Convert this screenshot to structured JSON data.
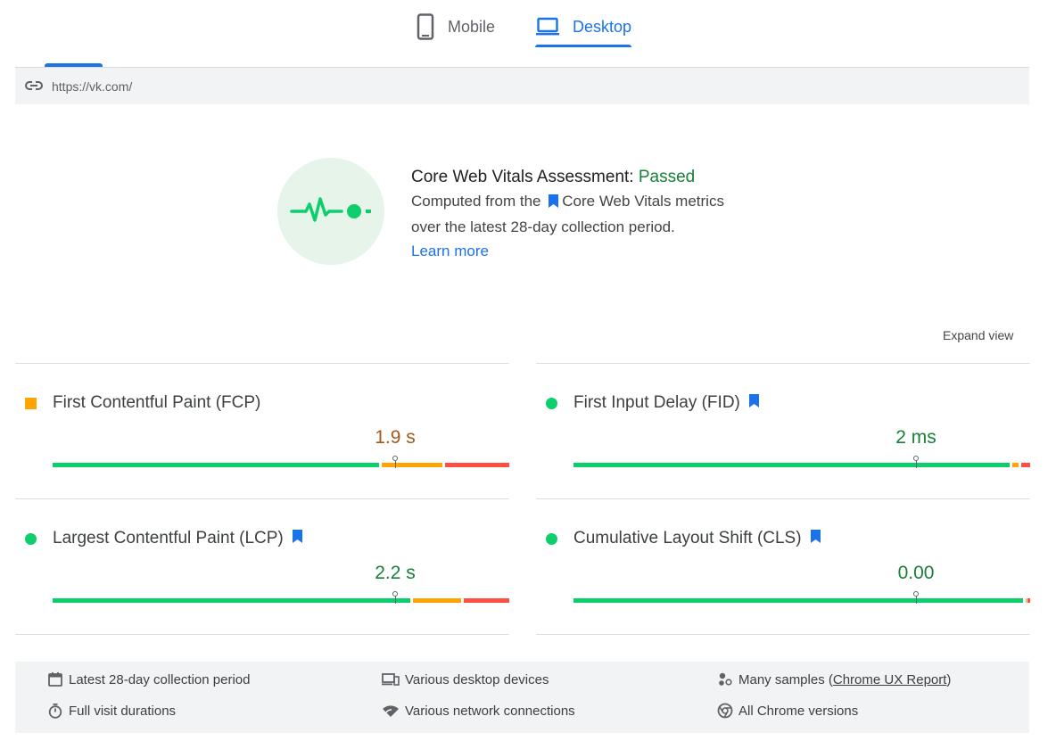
{
  "tabs": {
    "mobile_label": "Mobile",
    "desktop_label": "Desktop",
    "active": "Desktop"
  },
  "url": "https://vk.com/",
  "assessment": {
    "title_prefix": "Core Web Vitals Assessment: ",
    "status": "Passed",
    "line1_before": "Computed from the",
    "line1_after": "Core Web Vitals metrics",
    "line2": "over the latest 28-day collection period.",
    "learn_more": "Learn more"
  },
  "expand_view": "Expand view",
  "metrics": [
    {
      "name": "First Contentful Paint (FCP)",
      "value": "1.9 s",
      "status": "average",
      "core_vital": false,
      "distribution": {
        "good": 0.72,
        "needs_improvement": 0.14,
        "poor": 0.14
      },
      "marker_position": 0.75
    },
    {
      "name": "First Input Delay (FID)",
      "value": "2 ms",
      "status": "good",
      "core_vital": true,
      "distribution": {
        "good": 0.96,
        "needs_improvement": 0.02,
        "poor": 0.02
      },
      "marker_position": 0.75
    },
    {
      "name": "Largest Contentful Paint (LCP)",
      "value": "2.2 s",
      "status": "good",
      "core_vital": true,
      "distribution": {
        "good": 0.79,
        "needs_improvement": 0.11,
        "poor": 0.1
      },
      "marker_position": 0.75
    },
    {
      "name": "Cumulative Layout Shift (CLS)",
      "value": "0.00",
      "status": "good",
      "core_vital": true,
      "distribution": {
        "good": 0.99,
        "needs_improvement": 0.005,
        "poor": 0.005
      },
      "marker_position": 0.75
    }
  ],
  "footer": {
    "collection_period": "Latest 28-day collection period",
    "visit_durations": "Full visit durations",
    "devices": "Various desktop devices",
    "network": "Various network connections",
    "samples_prefix": "Many samples (",
    "samples_link": "Chrome UX Report",
    "samples_suffix": ")",
    "chrome_versions": "All Chrome versions"
  },
  "colors": {
    "accent": "#1a73e8",
    "good": "#0cce6b",
    "average": "#ffa400",
    "poor": "#ff4e42",
    "passed_text": "#188038"
  },
  "icons": {
    "mobile_tab": "smartphone-icon",
    "desktop_tab": "laptop-icon",
    "url": "link-icon",
    "assessment": "pulse-icon",
    "core_vital": "bookmark-icon",
    "collection_period": "calendar-icon",
    "visit_durations": "stopwatch-icon",
    "devices": "devices-icon",
    "network": "wifi-icon",
    "samples": "dots-cluster-icon",
    "chrome_versions": "chrome-icon"
  }
}
